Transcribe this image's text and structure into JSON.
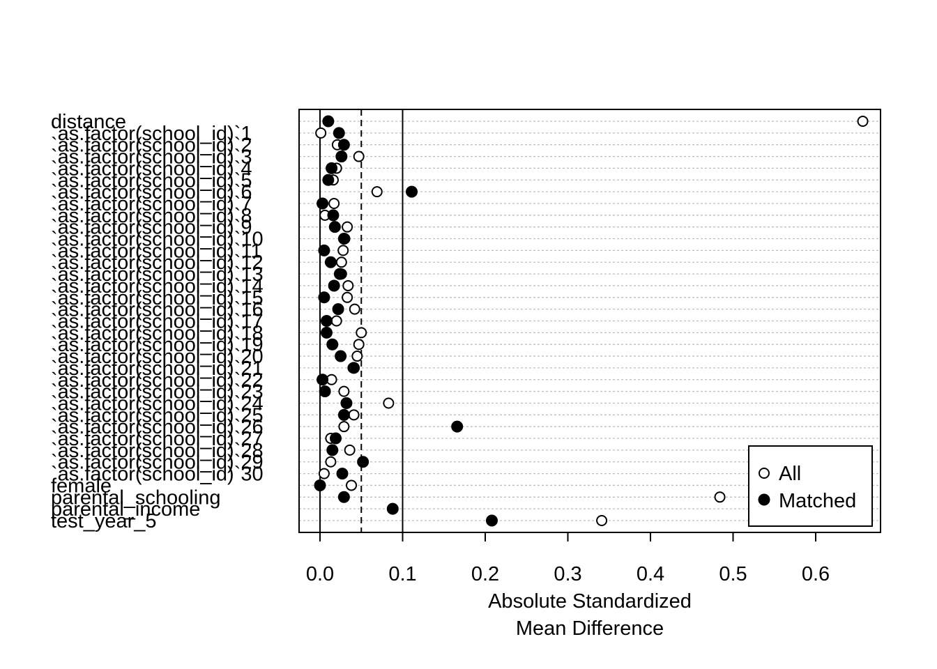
{
  "chart_data": {
    "type": "scatter",
    "title": "",
    "xlabel_lines": [
      "Absolute Standardized",
      "Mean Difference"
    ],
    "xlim": [
      -0.025,
      0.6825
    ],
    "xticks": [
      0.0,
      0.1,
      0.2,
      0.3,
      0.4,
      0.5,
      0.6
    ],
    "xtick_labels": [
      "0.0",
      "0.1",
      "0.2",
      "0.3",
      "0.4",
      "0.5",
      "0.6"
    ],
    "reference_lines": [
      {
        "x": 0.0,
        "style": "solid"
      },
      {
        "x": 0.05,
        "style": "dashed"
      },
      {
        "x": 0.1,
        "style": "solid"
      }
    ],
    "grid": "horizontal dotted",
    "legend": {
      "position": "bottom-right",
      "items": [
        "All",
        "Matched"
      ]
    },
    "categories": [
      "distance",
      "`as.factor(school_id)`1",
      "`as.factor(school_id)`2",
      "`as.factor(school_id)`3",
      "`as.factor(school_id)`4",
      "`as.factor(school_id)`5",
      "`as.factor(school_id)`6",
      "`as.factor(school_id)`7",
      "`as.factor(school_id)`8",
      "`as.factor(school_id)`9",
      "`as.factor(school_id)`10",
      "`as.factor(school_id)`11",
      "`as.factor(school_id)`12",
      "`as.factor(school_id)`13",
      "`as.factor(school_id)`14",
      "`as.factor(school_id)`15",
      "`as.factor(school_id)`16",
      "`as.factor(school_id)`17",
      "`as.factor(school_id)`18",
      "`as.factor(school_id)`19",
      "`as.factor(school_id)`20",
      "`as.factor(school_id)`21",
      "`as.factor(school_id)`22",
      "`as.factor(school_id)`23",
      "`as.factor(school_id)`24",
      "`as.factor(school_id)`25",
      "`as.factor(school_id)`26",
      "`as.factor(school_id)`27",
      "`as.factor(school_id)`28",
      "`as.factor(school_id)`29",
      "`as.factor(school_id)`30",
      "female",
      "parental_schooling",
      "parental_income",
      "test_year_5"
    ],
    "series": [
      {
        "name": "All",
        "marker": "open-circle",
        "values": [
          0.657,
          0.001,
          0.021,
          0.047,
          0.02,
          0.016,
          0.069,
          0.017,
          0.006,
          0.033,
          0.03,
          0.028,
          0.026,
          0.026,
          0.034,
          0.033,
          0.042,
          0.02,
          0.05,
          0.047,
          0.045,
          0.04,
          0.014,
          0.029,
          0.083,
          0.041,
          0.029,
          0.013,
          0.036,
          0.013,
          0.005,
          0.038,
          0.484,
          0.088,
          0.341
        ]
      },
      {
        "name": "Matched",
        "marker": "filled-circle",
        "values": [
          0.01,
          0.023,
          0.029,
          0.026,
          0.014,
          0.01,
          0.111,
          0.003,
          0.016,
          0.018,
          0.029,
          0.005,
          0.013,
          0.024,
          0.017,
          0.005,
          0.022,
          0.008,
          0.008,
          0.015,
          0.025,
          0.041,
          0.003,
          0.006,
          0.032,
          0.029,
          0.166,
          0.019,
          0.015,
          0.052,
          0.027,
          0.0,
          0.029,
          0.088,
          0.208
        ]
      }
    ]
  }
}
